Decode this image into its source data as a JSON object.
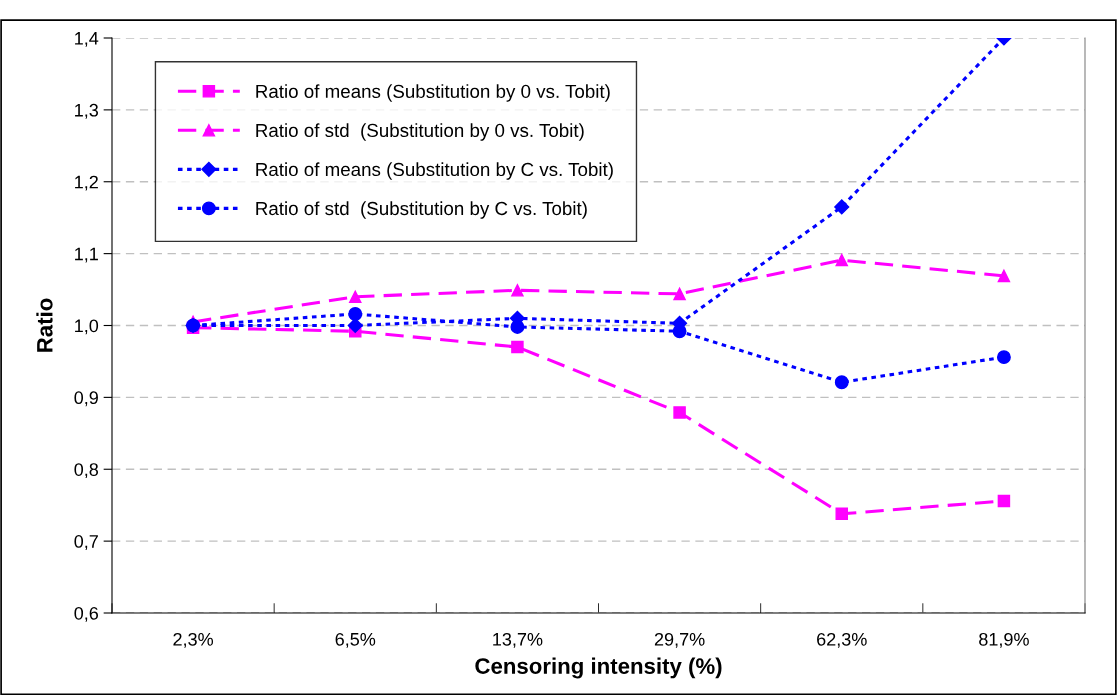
{
  "chart_data": {
    "type": "line",
    "xlabel": "Censoring intensity (%)",
    "ylabel": "Ratio",
    "categories": [
      "2,3%",
      "6,5%",
      "13,7%",
      "29,7%",
      "62,3%",
      "81,9%"
    ],
    "series": [
      {
        "name": "Ratio of means (Substitution by 0 vs. Tobit)",
        "color": "#ff00ff",
        "marker": "square",
        "line_style": "dashed",
        "values": [
          0.997,
          0.992,
          0.97,
          0.879,
          0.738,
          0.756
        ]
      },
      {
        "name": "Ratio of std  (Substitution by 0 vs. Tobit)",
        "color": "#ff00ff",
        "marker": "triangle",
        "line_style": "dashed",
        "values": [
          1.005,
          1.04,
          1.049,
          1.044,
          1.091,
          1.069
        ]
      },
      {
        "name": "Ratio of means (Substitution by C vs. Tobit)",
        "color": "#0000ff",
        "marker": "diamond",
        "line_style": "dotted",
        "values": [
          1.0,
          1.0,
          1.01,
          1.003,
          1.165,
          1.4
        ]
      },
      {
        "name": "Ratio of std  (Substitution by C vs. Tobit)",
        "color": "#0000ff",
        "marker": "circle",
        "line_style": "dotted",
        "values": [
          1.0,
          1.016,
          0.998,
          0.992,
          0.921,
          0.956
        ]
      }
    ],
    "ylim": [
      0.6,
      1.4
    ],
    "yticks": [
      {
        "value": 0.6,
        "label": "0,6"
      },
      {
        "value": 0.7,
        "label": "0,7"
      },
      {
        "value": 0.8,
        "label": "0,8"
      },
      {
        "value": 0.9,
        "label": "0,9"
      },
      {
        "value": 1.0,
        "label": "1,0"
      },
      {
        "value": 1.1,
        "label": "1,1"
      },
      {
        "value": 1.2,
        "label": "1,2"
      },
      {
        "value": 1.3,
        "label": "1,3"
      },
      {
        "value": 1.4,
        "label": "1,4"
      }
    ],
    "grid": "y",
    "legend": "top left"
  }
}
